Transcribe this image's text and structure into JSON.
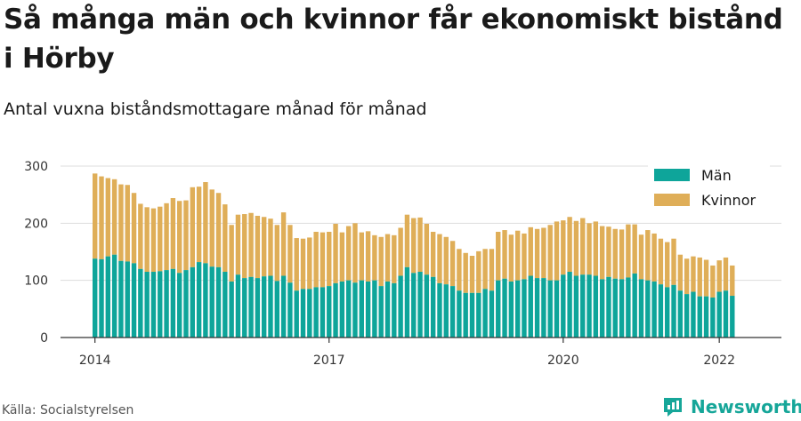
{
  "title": "Så många män och kvinnor får ekonomiskt bistånd i Hörby",
  "subtitle": "Antal vuxna biståndsmottagare månad för månad",
  "source": "Källa: Socialstyrelsen",
  "brand": {
    "name": "Newsworthy",
    "icon": "newsworthy-logo-icon",
    "color": "#16a699"
  },
  "colors": {
    "men": "#0ea59a",
    "women": "#dfae58",
    "grid": "#dddddd",
    "axis": "#333333",
    "text": "#333333"
  },
  "chart_data": {
    "type": "bar",
    "stacked": true,
    "frequency": "monthly",
    "first_month": "2014-01",
    "x_tick_labels": [
      "2014",
      "2017",
      "2020",
      "2022"
    ],
    "y_ticks": [
      0,
      100,
      200,
      300
    ],
    "ylim": [
      0,
      300
    ],
    "grid": true,
    "legend_position": "top-right",
    "series": [
      {
        "name": "Män",
        "color": "#0ea59a",
        "values": [
          138,
          137,
          142,
          145,
          134,
          133,
          130,
          120,
          115,
          115,
          116,
          118,
          120,
          113,
          118,
          123,
          132,
          130,
          124,
          123,
          115,
          98,
          110,
          104,
          106,
          104,
          107,
          108,
          99,
          108,
          96,
          82,
          85,
          85,
          88,
          88,
          90,
          95,
          98,
          100,
          96,
          100,
          98,
          100,
          90,
          98,
          95,
          108,
          123,
          113,
          115,
          110,
          106,
          95,
          93,
          90,
          82,
          78,
          78,
          78,
          85,
          82,
          100,
          103,
          98,
          100,
          102,
          108,
          104,
          104,
          100,
          100,
          110,
          115,
          108,
          110,
          110,
          108,
          102,
          106,
          103,
          102,
          105,
          112,
          102,
          100,
          98,
          93,
          88,
          92,
          82,
          76,
          80,
          72,
          72,
          70,
          80,
          82,
          73
        ]
      },
      {
        "name": "Kvinnor",
        "color": "#dfae58",
        "values": [
          149,
          145,
          137,
          132,
          134,
          134,
          123,
          114,
          113,
          111,
          113,
          117,
          124,
          126,
          122,
          140,
          132,
          142,
          135,
          130,
          118,
          99,
          105,
          112,
          112,
          109,
          104,
          100,
          98,
          111,
          101,
          92,
          88,
          90,
          97,
          96,
          95,
          104,
          86,
          95,
          104,
          84,
          88,
          79,
          86,
          83,
          84,
          84,
          92,
          96,
          95,
          89,
          79,
          86,
          83,
          79,
          73,
          70,
          65,
          73,
          70,
          73,
          85,
          85,
          82,
          87,
          80,
          85,
          86,
          88,
          97,
          103,
          95,
          96,
          96,
          99,
          90,
          95,
          93,
          88,
          87,
          87,
          93,
          86,
          78,
          88,
          84,
          80,
          79,
          81,
          63,
          62,
          62,
          68,
          64,
          56,
          55,
          58,
          53
        ]
      }
    ]
  }
}
